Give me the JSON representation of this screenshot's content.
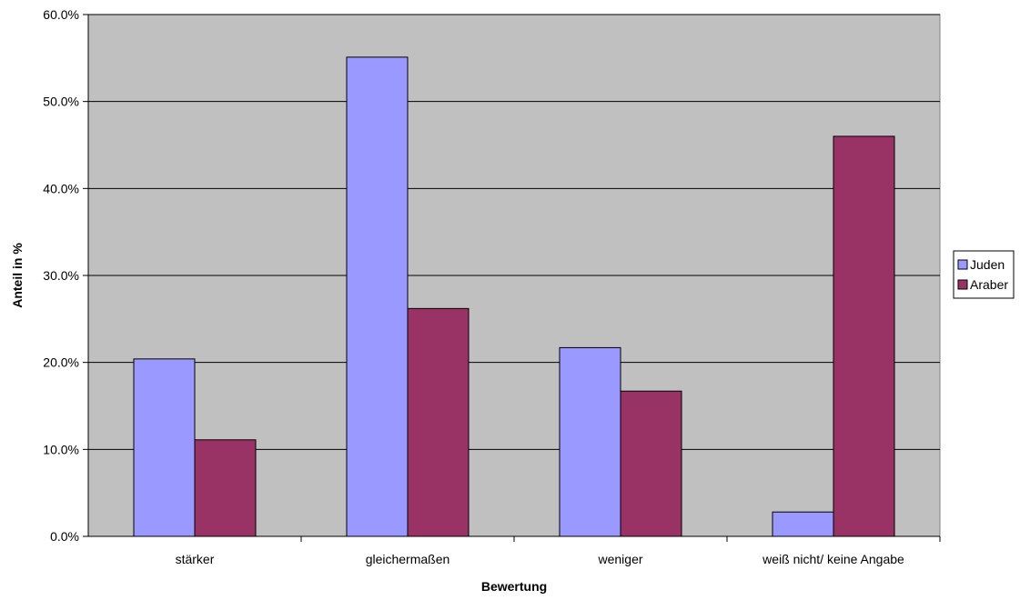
{
  "chart_data": {
    "type": "bar",
    "title": "",
    "xlabel": "Bewertung",
    "ylabel": "Anteil in %",
    "categories": [
      "stärker",
      "gleichermaßen",
      "weniger",
      "weiß nicht/ keine Angabe"
    ],
    "series": [
      {
        "name": "Juden",
        "values": [
          20.4,
          55.1,
          21.7,
          2.8
        ],
        "color": "#9999ff"
      },
      {
        "name": "Araber",
        "values": [
          11.1,
          26.2,
          16.7,
          46.0
        ],
        "color": "#993366"
      }
    ],
    "ylim": [
      0,
      60
    ],
    "yticks": [
      0,
      10,
      20,
      30,
      40,
      50,
      60
    ],
    "ytick_labels": [
      "0.0%",
      "10.0%",
      "20.0%",
      "30.0%",
      "40.0%",
      "50.0%",
      "60.0%"
    ],
    "grid": true,
    "plot_background": "#c0c0c0",
    "legend_position": "right"
  }
}
